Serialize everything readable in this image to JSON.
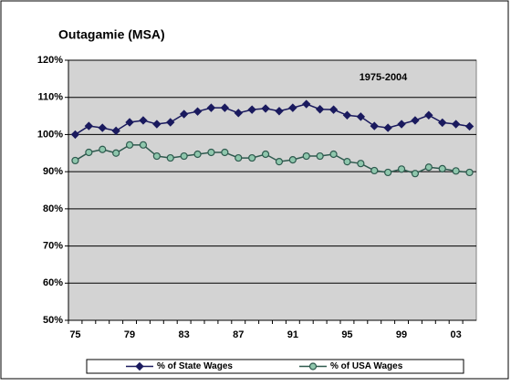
{
  "chart_data": {
    "type": "line",
    "title": "Outagamie (MSA)",
    "annotation": "1975-2004",
    "categories": [
      "75",
      null,
      null,
      null,
      "79",
      null,
      null,
      null,
      "83",
      null,
      null,
      null,
      "87",
      null,
      null,
      null,
      "91",
      null,
      null,
      null,
      "95",
      null,
      null,
      null,
      "99",
      null,
      null,
      null,
      "03",
      null
    ],
    "series": [
      {
        "name": "% of State Wages",
        "color": "#1a1a5e",
        "marker_color": "#1a1a5e",
        "values": [
          100,
          102.3,
          101.8,
          101,
          103.3,
          103.8,
          102.8,
          103.3,
          105.5,
          106.2,
          107.2,
          107.2,
          105.8,
          106.7,
          107,
          106.3,
          107.2,
          108.2,
          106.8,
          106.7,
          105.2,
          104.8,
          102.3,
          101.8,
          102.8,
          103.8,
          105.2,
          103.2,
          102.8,
          102.2
        ]
      },
      {
        "name": "% of USA Wages",
        "color": "#2e5a4e",
        "marker_color": "#8fc7ad",
        "values": [
          93,
          95.2,
          96,
          95,
          97.2,
          97.2,
          94.2,
          93.7,
          94.2,
          94.7,
          95.2,
          95.2,
          93.7,
          93.7,
          94.7,
          92.7,
          93.2,
          94.2,
          94.2,
          94.7,
          92.7,
          92.2,
          90.3,
          89.8,
          90.7,
          89.5,
          91.2,
          90.8,
          90.2,
          89.8
        ]
      }
    ],
    "ylim": [
      50,
      120
    ],
    "yticks": [
      {
        "value": 50,
        "label": "50%"
      },
      {
        "value": 60,
        "label": "60%"
      },
      {
        "value": 70,
        "label": "70%"
      },
      {
        "value": 80,
        "label": "80%"
      },
      {
        "value": 90,
        "label": "90%"
      },
      {
        "value": 100,
        "label": "100%"
      },
      {
        "value": 110,
        "label": "110%"
      },
      {
        "value": 120,
        "label": "120%"
      }
    ],
    "grid": true,
    "legend": "bottom",
    "plot_background": "#d3d3d3"
  }
}
